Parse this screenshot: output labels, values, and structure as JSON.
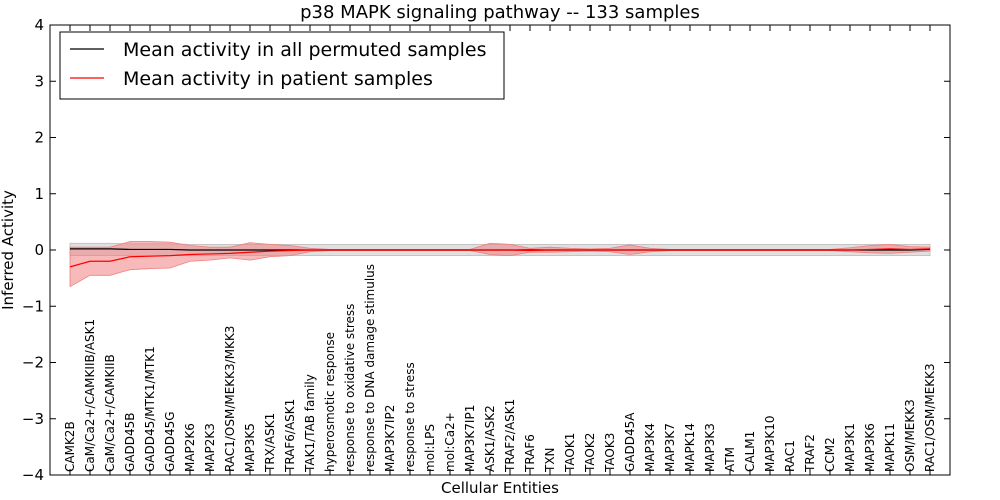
{
  "chart_data": {
    "type": "line",
    "title": "p38 MAPK signaling pathway -- 133 samples",
    "xlabel": "Cellular Entities",
    "ylabel": "Inferred Activity",
    "ylim": [
      -4,
      4
    ],
    "yticks": [
      "4",
      "3",
      "2",
      "1",
      "0",
      "−1",
      "−2",
      "−3",
      "−4"
    ],
    "ytick_values": [
      4,
      3,
      2,
      1,
      0,
      -1,
      -2,
      -3,
      -4
    ],
    "legend_position": "top-left",
    "categories": [
      "CAMK2B",
      "CaM/Ca2+/CAMKIIB/ASK1",
      "CaM/Ca2+/CAMKIIB",
      "GADD45B",
      "GADD45/MTK1/MTK1",
      "GADD45G",
      "MAP2K6",
      "MAP2K3",
      "RAC1/OSM/MEKK3/MKK3",
      "MAP3K5",
      "TRX/ASK1",
      "TRAF6/ASK1",
      "TAK1/TAB family",
      "hyperosmotic response",
      "response to oxidative stress",
      "response to DNA damage stimulus",
      "MAP3K7IP2",
      "response to stress",
      "mol:LPS",
      "mol:Ca2+",
      "MAP3K7IP1",
      "ASK1/ASK2",
      "TRAF2/ASK1",
      "TRAF6",
      "TXN",
      "TAOK1",
      "TAOK2",
      "TAOK3",
      "GADD45A",
      "MAP3K4",
      "MAP3K7",
      "MAPK14",
      "MAP3K3",
      "ATM",
      "CALM1",
      "MAP3K10",
      "RAC1",
      "TRAF2",
      "CCM2",
      "MAP3K1",
      "MAP3K6",
      "MAPK11",
      "OSM/MEKK3",
      "RAC1/OSM/MEKK3"
    ],
    "series": [
      {
        "name": "Mean activity in all permuted samples",
        "color": "#000000",
        "band_color": "#bbbbbb",
        "values": [
          0.02,
          0.02,
          0.02,
          0.01,
          0.01,
          0.01,
          0.0,
          0.0,
          0.0,
          0.0,
          0.0,
          0.0,
          0.0,
          0.0,
          0.0,
          0.0,
          0.0,
          0.0,
          0.0,
          0.0,
          0.0,
          0.0,
          0.0,
          0.0,
          0.0,
          0.0,
          0.0,
          0.0,
          0.0,
          0.0,
          0.0,
          0.0,
          0.0,
          0.0,
          0.0,
          0.0,
          0.0,
          0.0,
          0.0,
          0.0,
          0.0,
          0.0,
          0.0,
          0.01
        ],
        "upper": [
          0.12,
          0.12,
          0.12,
          0.11,
          0.11,
          0.11,
          0.1,
          0.1,
          0.1,
          0.1,
          0.1,
          0.1,
          0.1,
          0.1,
          0.1,
          0.1,
          0.1,
          0.1,
          0.1,
          0.1,
          0.1,
          0.1,
          0.1,
          0.1,
          0.1,
          0.1,
          0.1,
          0.1,
          0.1,
          0.1,
          0.1,
          0.1,
          0.1,
          0.1,
          0.1,
          0.1,
          0.1,
          0.1,
          0.1,
          0.1,
          0.1,
          0.1,
          0.1,
          0.1
        ],
        "lower": [
          -0.1,
          -0.1,
          -0.1,
          -0.1,
          -0.1,
          -0.1,
          -0.1,
          -0.1,
          -0.1,
          -0.1,
          -0.1,
          -0.1,
          -0.1,
          -0.1,
          -0.1,
          -0.1,
          -0.1,
          -0.1,
          -0.1,
          -0.1,
          -0.1,
          -0.1,
          -0.1,
          -0.1,
          -0.1,
          -0.1,
          -0.1,
          -0.1,
          -0.1,
          -0.1,
          -0.1,
          -0.1,
          -0.1,
          -0.1,
          -0.1,
          -0.1,
          -0.1,
          -0.1,
          -0.1,
          -0.1,
          -0.1,
          -0.1,
          -0.1,
          -0.1
        ]
      },
      {
        "name": "Mean activity in patient samples",
        "color": "#ff0000",
        "band_color": "#f08080",
        "values": [
          -0.3,
          -0.2,
          -0.2,
          -0.12,
          -0.11,
          -0.1,
          -0.08,
          -0.07,
          -0.06,
          -0.04,
          -0.02,
          -0.01,
          0.0,
          0.0,
          0.0,
          0.0,
          0.0,
          0.0,
          0.0,
          0.0,
          0.0,
          0.0,
          0.0,
          -0.01,
          0.0,
          0.0,
          0.0,
          0.0,
          0.0,
          0.0,
          0.0,
          0.0,
          0.0,
          0.0,
          0.0,
          0.0,
          0.0,
          0.0,
          0.0,
          0.0,
          0.01,
          0.02,
          0.01,
          0.02
        ],
        "upper": [
          0.05,
          0.05,
          0.05,
          0.15,
          0.15,
          0.14,
          0.08,
          0.05,
          0.05,
          0.13,
          0.1,
          0.08,
          0.03,
          0.01,
          0.01,
          0.01,
          0.01,
          0.01,
          0.01,
          0.01,
          0.01,
          0.12,
          0.1,
          0.03,
          0.05,
          0.03,
          0.02,
          0.03,
          0.09,
          0.03,
          0.01,
          0.01,
          0.01,
          0.01,
          0.01,
          0.01,
          0.01,
          0.01,
          0.01,
          0.04,
          0.08,
          0.1,
          0.06,
          0.05
        ],
        "lower": [
          -0.65,
          -0.45,
          -0.45,
          -0.35,
          -0.33,
          -0.32,
          -0.2,
          -0.18,
          -0.14,
          -0.18,
          -0.12,
          -0.1,
          -0.03,
          -0.01,
          -0.01,
          -0.01,
          -0.01,
          -0.01,
          -0.01,
          -0.01,
          -0.01,
          -0.08,
          -0.1,
          -0.04,
          -0.04,
          -0.03,
          -0.02,
          -0.03,
          -0.08,
          -0.03,
          -0.01,
          -0.01,
          -0.01,
          -0.01,
          -0.01,
          -0.01,
          -0.01,
          -0.01,
          -0.01,
          -0.03,
          -0.05,
          -0.06,
          -0.04,
          -0.02
        ]
      }
    ]
  }
}
